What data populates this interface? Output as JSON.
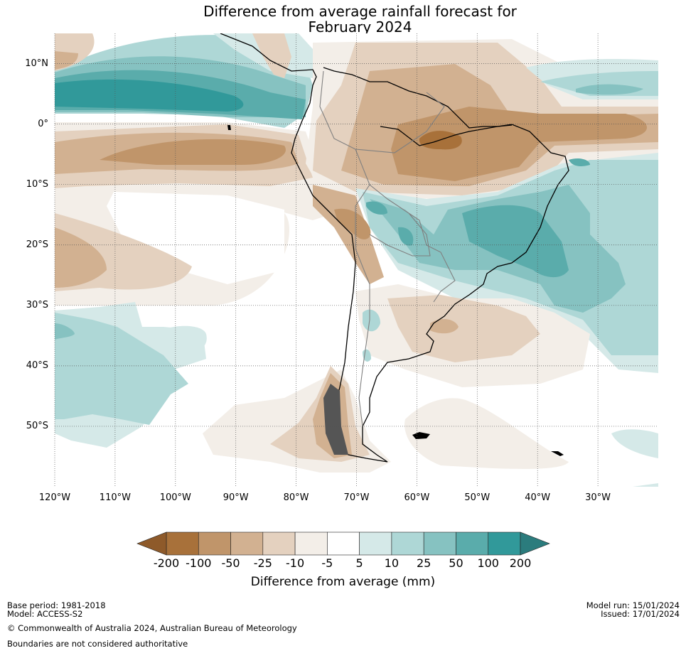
{
  "title": {
    "line1": "Difference from average rainfall forecast for",
    "line2": "February 2024"
  },
  "map": {
    "projection": "equirectangular",
    "lon_range": [
      -120,
      -20
    ],
    "lat_range": [
      -60,
      15
    ],
    "latitude_labels": [
      "10°N",
      "0°",
      "10°S",
      "20°S",
      "30°S",
      "40°S",
      "50°S"
    ],
    "latitude_values": [
      10,
      0,
      -10,
      -20,
      -30,
      -40,
      -50
    ],
    "longitude_labels": [
      "120°W",
      "110°W",
      "100°W",
      "90°W",
      "80°W",
      "70°W",
      "60°W",
      "50°W",
      "40°W",
      "30°W"
    ],
    "longitude_values": [
      -120,
      -110,
      -100,
      -90,
      -80,
      -70,
      -60,
      -50,
      -40,
      -30
    ],
    "gridlines": "dotted",
    "regions": [
      {
        "name": "equatorial-pacific-wet-band",
        "category": "50 to 200",
        "description": "wet band 0-10°N across east Pacific"
      },
      {
        "name": "equatorial-pacific-dry-band",
        "category": "-100 to -25",
        "description": "dry band 0-10°S across east Pacific"
      },
      {
        "name": "amazon-dry",
        "category": "-200 to -50",
        "description": "dry over northern Brazil / Amazon"
      },
      {
        "name": "equatorial-atlantic-dry",
        "category": "-100 to -25",
        "description": "dry band along equator in Atlantic"
      },
      {
        "name": "southeast-brazil-wet",
        "category": "25 to 100",
        "description": "wet across central/southeast Brazil and adjacent Atlantic"
      },
      {
        "name": "southeast-pacific-wet",
        "category": "5 to 25",
        "description": "wet 30-55°S, 90-120°W"
      },
      {
        "name": "patagonia-dry",
        "category": "-50 to -5",
        "description": "dry over southern Chile/Patagonia"
      },
      {
        "name": "argentina-uruguay-dry",
        "category": "-25 to -5",
        "description": "mild dry over Argentina/Uruguay"
      }
    ]
  },
  "colorbar": {
    "label": "Difference from average (mm)",
    "ticks": [
      "-200",
      "-100",
      "-50",
      "-25",
      "-10",
      "-5",
      "5",
      "10",
      "25",
      "50",
      "100",
      "200"
    ],
    "colors": [
      "#a8713a",
      "#c0956a",
      "#d2b191",
      "#e4d1bf",
      "#f3eee8",
      "#ffffff",
      "#d5e9e8",
      "#aed7d6",
      "#86c2c1",
      "#5aacab",
      "#31999a"
    ],
    "extend_low_color": "#8e5a2a",
    "extend_high_color": "#2b7c7d"
  },
  "footer": {
    "base_period": "Base period: 1981-2018",
    "model": "Model: ACCESS-S2",
    "copyright": "© Commonwealth of Australia 2024, Australian Bureau of Meteorology",
    "boundaries_note": "Boundaries are not considered authoritative",
    "model_run": "Model run: 15/01/2024",
    "issued": "Issued: 17/01/2024"
  }
}
